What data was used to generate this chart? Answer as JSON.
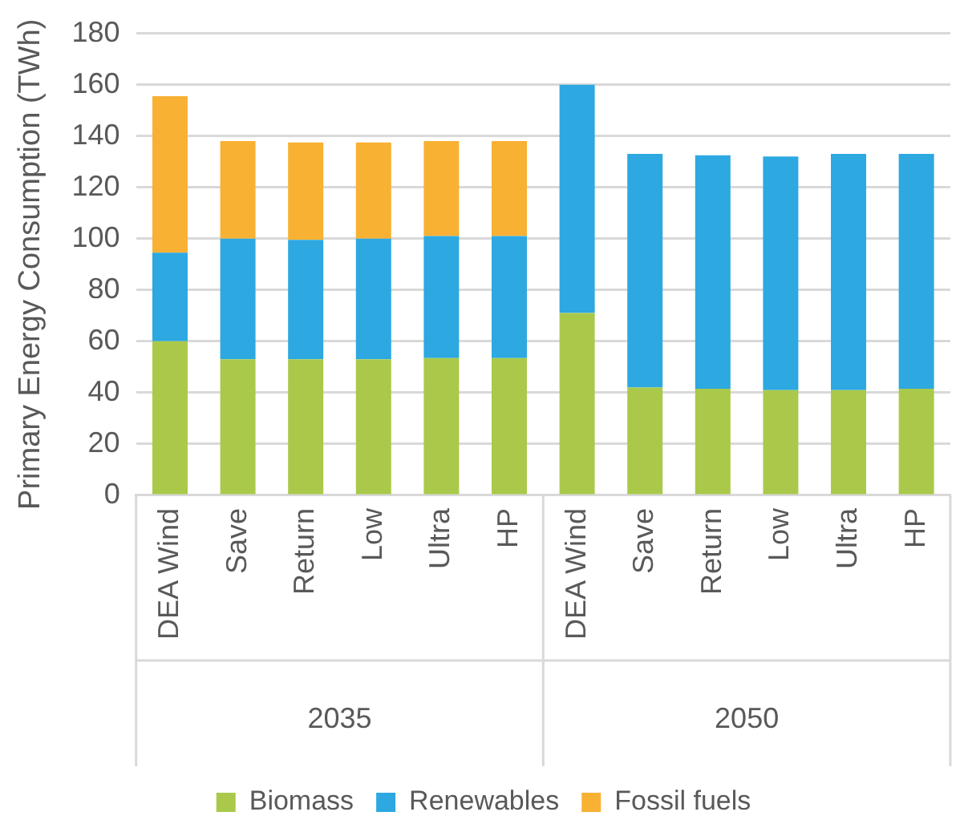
{
  "chart_data": {
    "type": "bar",
    "stacked": true,
    "ylabel": "Primary Energy Consumption (TWh)",
    "categories": [
      "DEA Wind",
      "Save",
      "Return",
      "Low",
      "Ultra",
      "HP",
      "DEA Wind",
      "Save",
      "Return",
      "Low",
      "Ultra",
      "HP"
    ],
    "series": [
      {
        "name": "Biomass",
        "color": "#aac94a",
        "values": [
          60,
          53,
          53,
          53,
          53.5,
          53.5,
          71,
          42,
          41.5,
          41,
          41,
          41.5
        ]
      },
      {
        "name": "Renewables",
        "color": "#2da8e1",
        "values": [
          34.5,
          47,
          46.5,
          47,
          47.5,
          47.5,
          89,
          91,
          91,
          91,
          92,
          91.5
        ]
      },
      {
        "name": "Fossil fuels",
        "color": "#f8b133",
        "values": [
          61,
          38,
          38,
          37.5,
          37,
          37,
          null,
          null,
          null,
          null,
          null,
          null
        ]
      }
    ],
    "annotations": [
      "2035",
      "2050"
    ],
    "ylim": [
      0,
      180
    ],
    "yticks": [
      0,
      20,
      40,
      60,
      80,
      100,
      120,
      140,
      160,
      180
    ],
    "grid": "y",
    "legend": "bottom"
  }
}
